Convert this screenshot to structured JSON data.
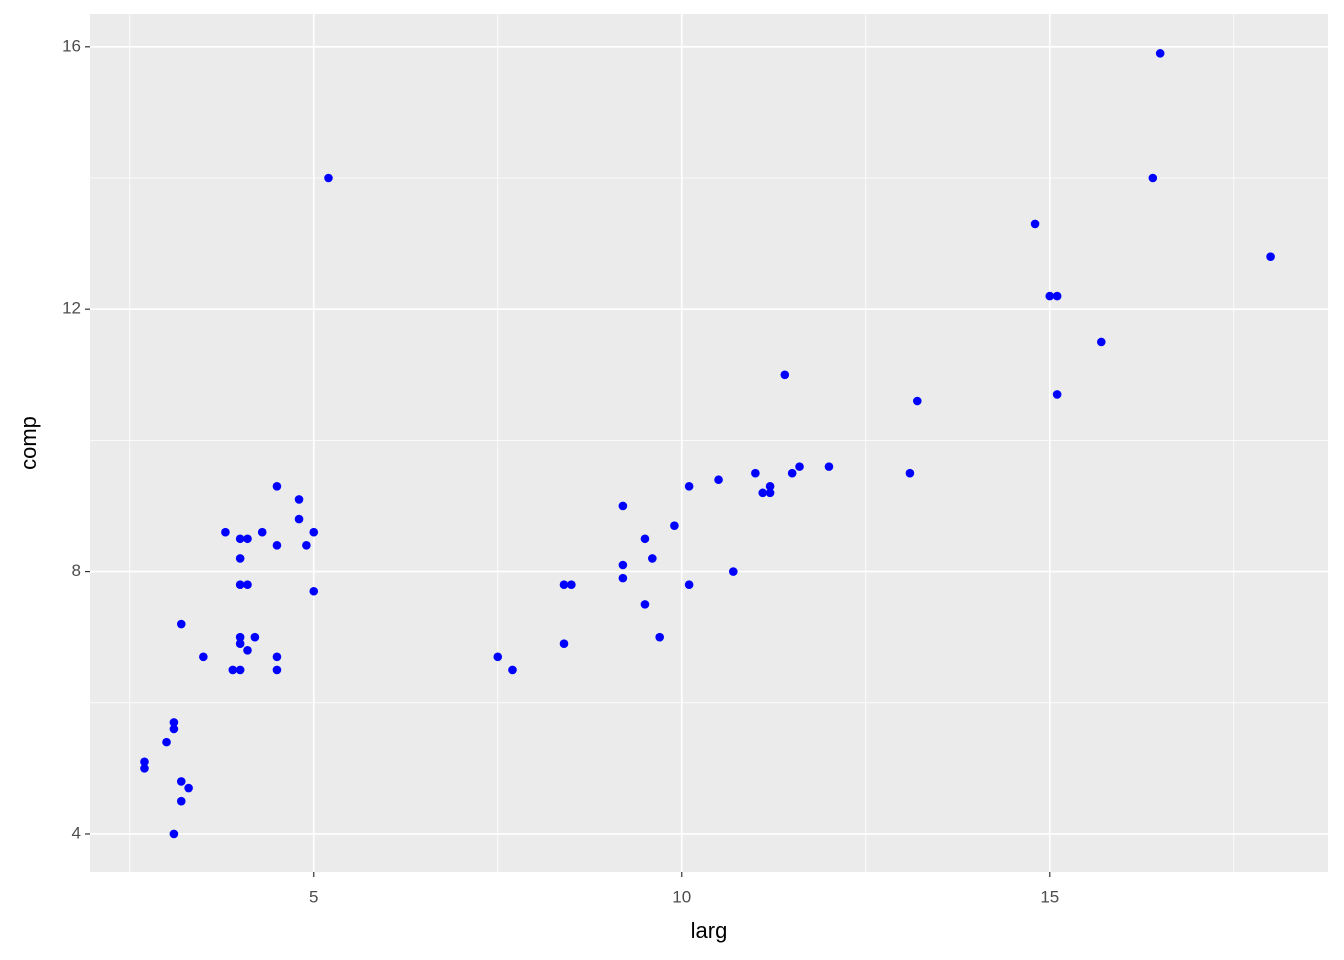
{
  "chart_data": {
    "type": "scatter",
    "x_label": "larg",
    "y_label": "comp",
    "color": "#0000ff",
    "x": [
      2.7,
      2.7,
      3.0,
      3.1,
      3.1,
      3.1,
      3.2,
      3.2,
      3.2,
      3.3,
      3.5,
      3.8,
      3.9,
      4.0,
      4.0,
      4.0,
      4.0,
      4.0,
      4.0,
      4.1,
      4.1,
      4.1,
      4.2,
      4.3,
      4.5,
      4.5,
      4.5,
      4.5,
      4.8,
      4.8,
      4.9,
      5.0,
      5.0,
      5.2,
      7.5,
      7.7,
      8.4,
      8.5,
      8.4,
      9.2,
      9.2,
      9.2,
      9.5,
      9.6,
      9.5,
      9.7,
      9.9,
      10.1,
      10.1,
      10.5,
      10.7,
      11.0,
      11.1,
      11.2,
      11.2,
      11.4,
      11.5,
      11.6,
      12.0,
      13.1,
      13.2,
      14.8,
      15.0,
      15.1,
      15.1,
      15.7,
      16.4,
      16.5,
      18.0
    ],
    "values": [
      5.1,
      5.0,
      5.4,
      5.7,
      5.6,
      4.0,
      7.2,
      4.8,
      4.5,
      4.7,
      6.7,
      8.6,
      6.5,
      8.5,
      8.2,
      7.8,
      7.0,
      6.9,
      6.5,
      8.5,
      7.8,
      6.8,
      7.0,
      8.6,
      9.3,
      8.4,
      6.7,
      6.5,
      9.1,
      8.8,
      8.4,
      8.6,
      7.7,
      14.0,
      6.7,
      6.5,
      7.8,
      7.8,
      6.9,
      9.0,
      8.1,
      7.9,
      8.5,
      8.2,
      7.5,
      7.0,
      8.7,
      9.3,
      7.8,
      9.4,
      8.0,
      9.5,
      9.2,
      9.3,
      9.2,
      11.0,
      9.5,
      9.6,
      9.6,
      9.5,
      10.6,
      13.3,
      12.2,
      12.2,
      10.7,
      11.5,
      14.0,
      15.9,
      12.8
    ],
    "xlim": [
      1.96,
      18.78
    ],
    "ylim": [
      3.42,
      16.5
    ],
    "xticks": [
      5,
      10,
      15
    ],
    "yticks": [
      4,
      8,
      12,
      16
    ],
    "x_minor_grid": [
      2.5,
      7.5,
      12.5,
      17.5
    ],
    "y_minor_grid": [
      6,
      10,
      14
    ],
    "grid": true
  }
}
